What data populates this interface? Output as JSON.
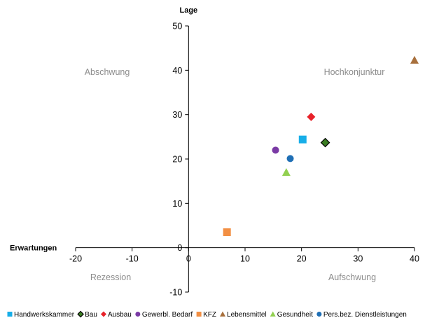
{
  "chart_data": {
    "type": "scatter",
    "xlabel": "Erwartungen",
    "ylabel": "Lage",
    "xlim": [
      -20,
      40
    ],
    "ylim": [
      -10,
      50
    ],
    "x_ticks": [
      -20,
      -10,
      0,
      10,
      20,
      30,
      40
    ],
    "y_ticks": [
      -10,
      0,
      10,
      20,
      30,
      40,
      50
    ],
    "x_tick_labels": [
      "-20",
      "-10",
      "0",
      "10",
      "20",
      "30",
      "40"
    ],
    "y_tick_labels": [
      "-10",
      "0",
      "10",
      "20",
      "30",
      "40",
      "50"
    ],
    "grid": false,
    "legend_position": "bottom",
    "quadrant_labels": {
      "top_left": "Abschwung",
      "top_right": "Hochkonjunktur",
      "bottom_left": "Rezession",
      "bottom_right": "Aufschwung"
    },
    "series": [
      {
        "name": "Handwerkskammer",
        "marker": "square",
        "color": "#17aee8",
        "x": 20.2,
        "y": 24.4
      },
      {
        "name": "Bau",
        "marker": "diamond",
        "color": "#3a7d22",
        "edge": "#000000",
        "x": 24.2,
        "y": 23.7
      },
      {
        "name": "Ausbau",
        "marker": "diamond",
        "color": "#e8222a",
        "x": 21.7,
        "y": 29.5
      },
      {
        "name": "Gewerbl. Bedarf",
        "marker": "circle",
        "color": "#7a3aa5",
        "x": 15.4,
        "y": 22.0
      },
      {
        "name": "KFZ",
        "marker": "square",
        "color": "#f28f43",
        "x": 6.8,
        "y": 3.5
      },
      {
        "name": "Lebensmittel",
        "marker": "triangle",
        "color": "#a8703d",
        "x": 40.0,
        "y": 42.3
      },
      {
        "name": "Gesundheit",
        "marker": "triangle",
        "color": "#92d050",
        "x": 17.3,
        "y": 17.0
      },
      {
        "name": "Pers.bez. Dienstleistungen",
        "marker": "circle",
        "color": "#1f6fb5",
        "x": 18.0,
        "y": 20.1
      }
    ]
  }
}
